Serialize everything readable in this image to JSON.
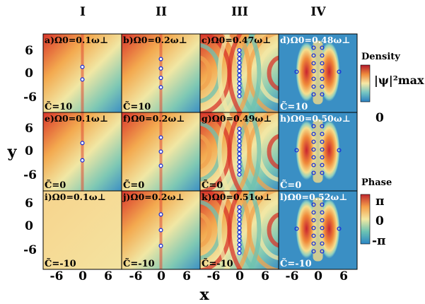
{
  "columns": [
    "I",
    "II",
    "III",
    "IV"
  ],
  "axis": {
    "xlabel": "x",
    "ylabel": "y",
    "x_ticks": [
      "-6",
      "0",
      "6"
    ],
    "y_ticks": [
      "6",
      "0",
      "-6"
    ]
  },
  "colorbars": {
    "density": {
      "title": "Density",
      "max_label": "|ψ|²max",
      "min_label": "0"
    },
    "phase": {
      "title": "Phase",
      "max_label": "π",
      "mid_label": "0",
      "min_label": "-π"
    }
  },
  "panels": [
    {
      "tag": "a)",
      "omega": "Ω0=0.1ω⊥",
      "c_label": "C̃=10",
      "type": "phase",
      "vortices": 2,
      "spacing": 0.16,
      "arc": 0
    },
    {
      "tag": "b)",
      "omega": "Ω0=0.2ω⊥",
      "c_label": "C̃=10",
      "type": "phase",
      "vortices": 4,
      "spacing": 0.12,
      "arc": 0
    },
    {
      "tag": "c)",
      "omega": "Ω0=0.47ω⊥",
      "c_label": "",
      "type": "phase",
      "vortices": 12,
      "spacing": 0.053,
      "arc": 1
    },
    {
      "tag": "d)",
      "omega": "Ω0=0.48ω⊥",
      "c_label": "C̃=10",
      "type": "density",
      "vortices": 13,
      "spacing": 0.05,
      "arc": 0
    },
    {
      "tag": "e)",
      "omega": "Ω0=0.1ω⊥",
      "c_label": "C̃=0",
      "type": "phase",
      "vortices": 2,
      "spacing": 0.22,
      "arc": 0
    },
    {
      "tag": "f)",
      "omega": "Ω0=0.2ω⊥",
      "c_label": "C̃=0",
      "type": "phase",
      "vortices": 3,
      "spacing": 0.18,
      "arc": 0
    },
    {
      "tag": "g)",
      "omega": "Ω0=0.49ω⊥",
      "c_label": "C̃=0",
      "type": "phase",
      "vortices": 12,
      "spacing": 0.053,
      "arc": 1
    },
    {
      "tag": "h)",
      "omega": "Ω0=0.50ω⊥",
      "c_label": "C̃=0",
      "type": "density",
      "vortices": 13,
      "spacing": 0.05,
      "arc": 0
    },
    {
      "tag": "i)",
      "omega": "Ω0=0.1ω⊥",
      "c_label": "C̃=-10",
      "type": "phase",
      "vortices": 0,
      "spacing": 0.2,
      "arc": 0
    },
    {
      "tag": "j)",
      "omega": "Ω0=0.2ω⊥",
      "c_label": "C̃=-10",
      "type": "phase",
      "vortices": 3,
      "spacing": 0.2,
      "arc": 0
    },
    {
      "tag": "k)",
      "omega": "Ω0=0.51ω⊥",
      "c_label": "C̃=-10",
      "type": "phase",
      "vortices": 12,
      "spacing": 0.053,
      "arc": 1
    },
    {
      "tag": "l)",
      "omega": "Ω0=0.52ω⊥",
      "c_label": "C̃=-10",
      "type": "density",
      "vortices": 13,
      "spacing": 0.05,
      "arc": 0
    }
  ]
}
